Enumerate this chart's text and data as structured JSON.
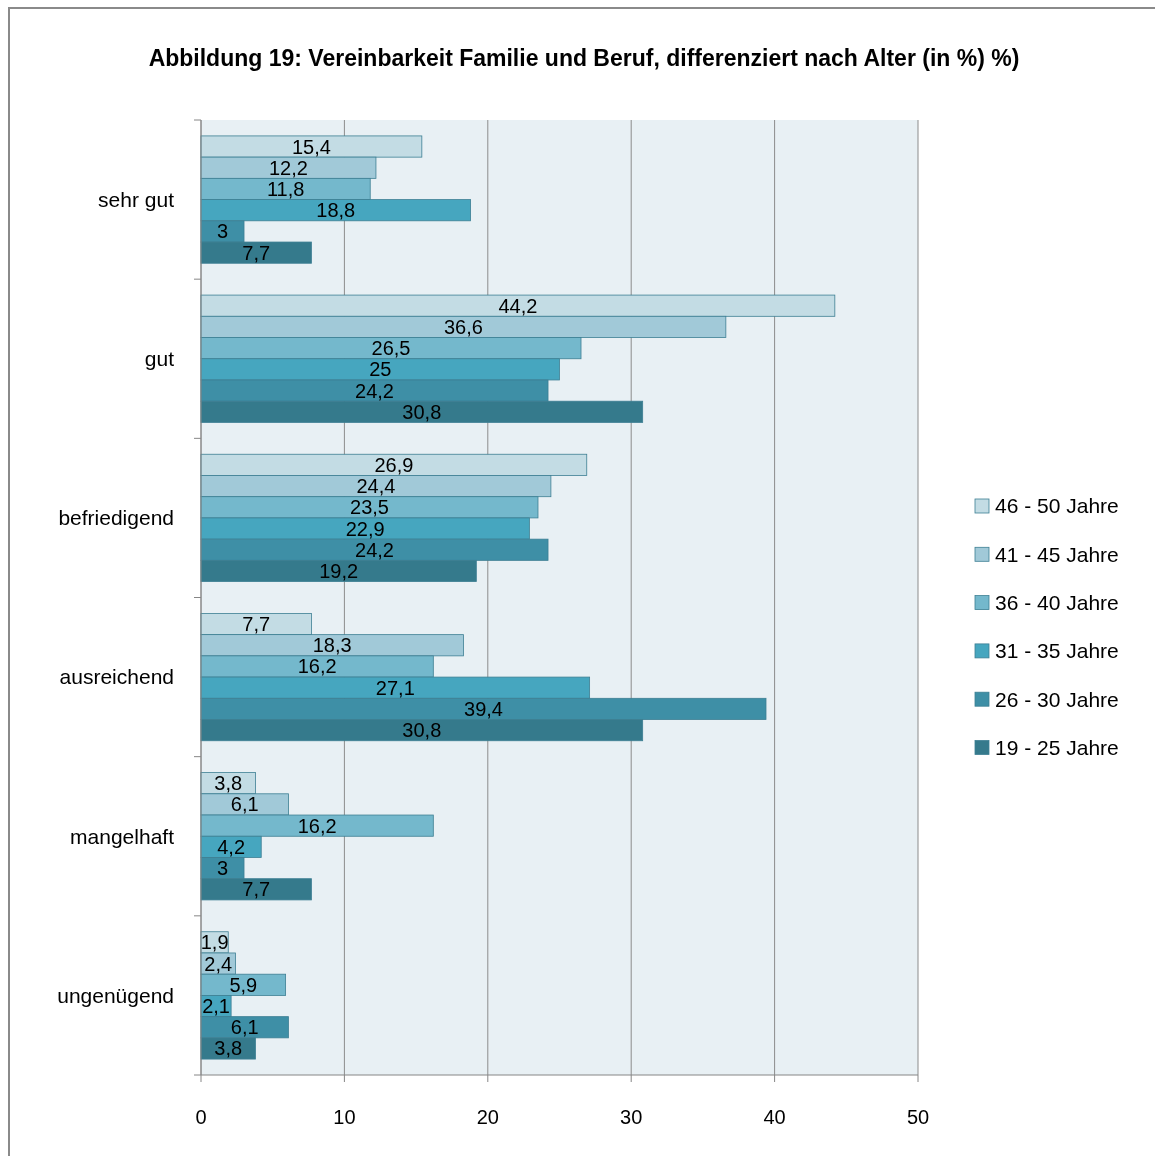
{
  "chart_data": {
    "type": "bar",
    "orientation": "horizontal",
    "title": "Abbildung  19:  Vereinbarkeit Familie und  Beruf, differenziert nach Alter (in %) %)",
    "categories": [
      "sehr gut",
      "gut",
      "befriedigend",
      "ausreichend",
      "mangelhaft",
      "ungenügend"
    ],
    "series": [
      {
        "name": "46 - 50 Jahre",
        "color": "#c3dce4",
        "values": [
          15.4,
          44.2,
          26.9,
          7.7,
          3.8,
          1.9
        ],
        "value_labels": [
          "15,4",
          "44,2",
          "26,9",
          "7,7",
          "3,8",
          "1,9"
        ]
      },
      {
        "name": "41 - 45 Jahre",
        "color": "#a1c9d8",
        "values": [
          12.2,
          36.6,
          24.4,
          18.3,
          6.1,
          2.4
        ],
        "value_labels": [
          "12,2",
          "36,6",
          "24,4",
          "18,3",
          "6,1",
          "2,4"
        ]
      },
      {
        "name": "36 - 40 Jahre",
        "color": "#74b8cc",
        "values": [
          11.8,
          26.5,
          23.5,
          16.2,
          16.2,
          5.9
        ],
        "value_labels": [
          "11,8",
          "26,5",
          "23,5",
          "16,2",
          "16,2",
          "5,9"
        ]
      },
      {
        "name": "31 - 35 Jahre",
        "color": "#46a6bf",
        "values": [
          18.8,
          25,
          22.9,
          27.1,
          4.2,
          2.1
        ],
        "value_labels": [
          "18,8",
          "25",
          "22,9",
          "27,1",
          "4,2",
          "2,1"
        ]
      },
      {
        "name": "26 - 30 Jahre",
        "color": "#3e8fa6",
        "values": [
          3,
          24.2,
          24.2,
          39.4,
          3,
          6.1
        ],
        "value_labels": [
          "3",
          "24,2",
          "24,2",
          "39,4",
          "3",
          "6,1"
        ]
      },
      {
        "name": "19 - 25 Jahre",
        "color": "#357a8c",
        "values": [
          7.7,
          30.8,
          19.2,
          30.8,
          7.7,
          3.8
        ],
        "value_labels": [
          "7,7",
          "30,8",
          "19,2",
          "30,8",
          "7,7",
          "3,8"
        ]
      }
    ],
    "xlim": [
      0,
      50
    ],
    "xticks": [
      0,
      10,
      20,
      30,
      40,
      50
    ],
    "grid": "x",
    "legend": "right"
  }
}
